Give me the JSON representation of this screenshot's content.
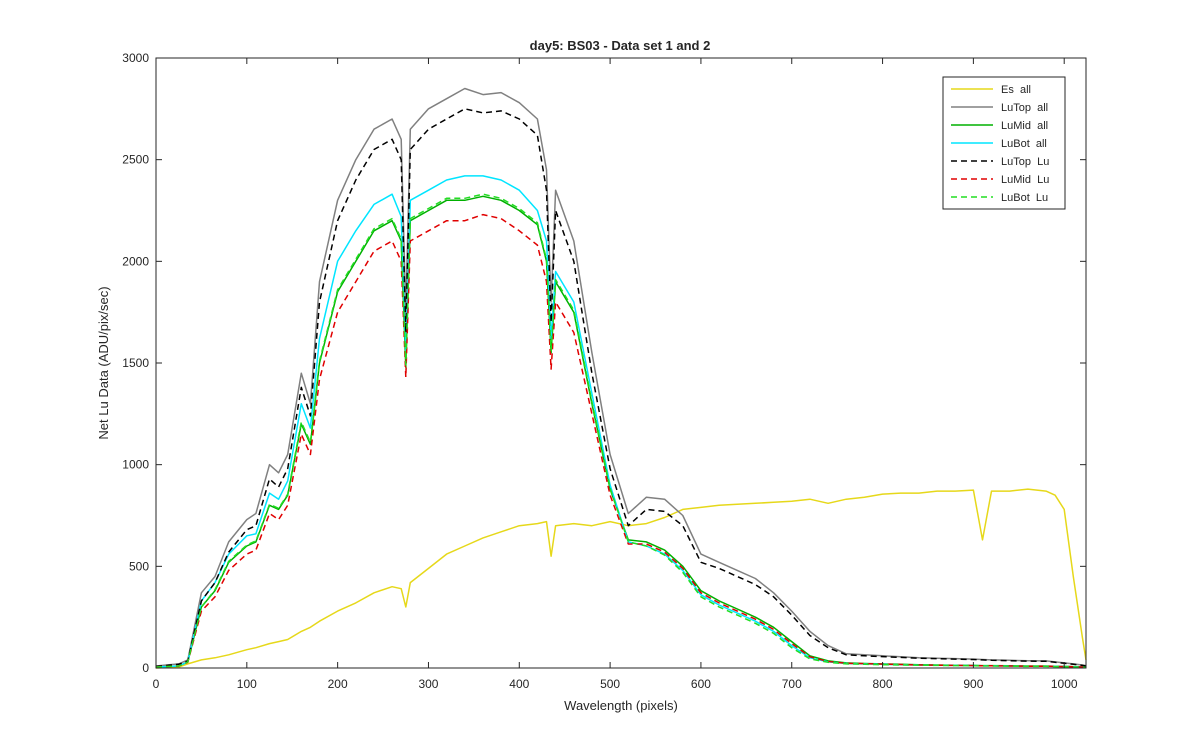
{
  "chart_data": {
    "type": "line",
    "title": "day5: BS03 - Data set 1 and 2",
    "xlabel": "Wavelength (pixels)",
    "ylabel": "Net Lu Data (ADU/pix/sec)",
    "xlim": [
      0,
      1024
    ],
    "ylim": [
      0,
      3000
    ],
    "xticks": [
      "0",
      "100",
      "200",
      "300",
      "400",
      "500",
      "600",
      "700",
      "800",
      "900",
      "1000"
    ],
    "xtick_values": [
      0,
      100,
      200,
      300,
      400,
      500,
      600,
      700,
      800,
      900,
      1000
    ],
    "yticks": [
      "0",
      "500",
      "1000",
      "1500",
      "2000",
      "2500",
      "3000"
    ],
    "ytick_values": [
      0,
      500,
      1000,
      1500,
      2000,
      2500,
      3000
    ],
    "grid": false,
    "legend_position": "top-right",
    "x": [
      0,
      25,
      35,
      50,
      65,
      80,
      100,
      110,
      125,
      135,
      145,
      160,
      170,
      180,
      200,
      220,
      240,
      260,
      270,
      275,
      280,
      300,
      320,
      340,
      360,
      380,
      400,
      420,
      430,
      435,
      440,
      460,
      480,
      500,
      520,
      540,
      560,
      580,
      600,
      620,
      640,
      660,
      680,
      700,
      720,
      740,
      760,
      780,
      800,
      820,
      840,
      860,
      880,
      900,
      910,
      920,
      940,
      960,
      980,
      990,
      1000,
      1010,
      1020,
      1024
    ],
    "series": [
      {
        "name": "Es  all",
        "color": "#e6d81a",
        "dash": "solid",
        "values": [
          0,
          5,
          20,
          40,
          50,
          65,
          90,
          100,
          120,
          130,
          140,
          180,
          200,
          230,
          280,
          320,
          370,
          400,
          390,
          300,
          420,
          490,
          560,
          600,
          640,
          670,
          700,
          710,
          720,
          550,
          700,
          710,
          700,
          720,
          700,
          710,
          740,
          780,
          790,
          800,
          805,
          810,
          815,
          820,
          830,
          810,
          830,
          840,
          855,
          860,
          860,
          870,
          870,
          875,
          630,
          870,
          870,
          880,
          870,
          850,
          780,
          450,
          150,
          40
        ]
      },
      {
        "name": "LuTop  all",
        "color": "#808080",
        "dash": "solid",
        "values": [
          10,
          20,
          40,
          370,
          450,
          620,
          730,
          760,
          1000,
          960,
          1050,
          1450,
          1300,
          1900,
          2300,
          2500,
          2650,
          2700,
          2600,
          1750,
          2650,
          2750,
          2800,
          2850,
          2820,
          2830,
          2780,
          2700,
          2450,
          1800,
          2350,
          2100,
          1550,
          1050,
          760,
          840,
          830,
          750,
          560,
          520,
          480,
          440,
          370,
          280,
          180,
          110,
          70,
          65,
          60,
          55,
          50,
          48,
          46,
          44,
          42,
          40,
          38,
          36,
          35,
          30,
          25,
          20,
          15,
          12
        ]
      },
      {
        "name": "LuMid  all",
        "color": "#00b000",
        "dash": "solid",
        "values": [
          5,
          10,
          30,
          300,
          380,
          520,
          600,
          620,
          800,
          780,
          850,
          1200,
          1100,
          1500,
          1850,
          2000,
          2150,
          2200,
          2100,
          1480,
          2200,
          2250,
          2300,
          2300,
          2320,
          2300,
          2250,
          2180,
          2000,
          1550,
          1900,
          1750,
          1300,
          880,
          630,
          620,
          580,
          500,
          380,
          330,
          290,
          250,
          200,
          130,
          60,
          35,
          25,
          22,
          20,
          18,
          16,
          15,
          14,
          13,
          12,
          12,
          11,
          10,
          10,
          9,
          8,
          7,
          6,
          5
        ]
      },
      {
        "name": "LuBot  all",
        "color": "#00e5ff",
        "dash": "solid",
        "values": [
          5,
          10,
          30,
          330,
          420,
          560,
          650,
          660,
          860,
          830,
          920,
          1300,
          1180,
          1620,
          2000,
          2150,
          2280,
          2330,
          2220,
          1550,
          2300,
          2350,
          2400,
          2420,
          2420,
          2400,
          2350,
          2250,
          2100,
          1620,
          1950,
          1800,
          1350,
          900,
          620,
          600,
          560,
          480,
          360,
          310,
          270,
          230,
          180,
          110,
          50,
          30,
          22,
          20,
          18,
          16,
          15,
          14,
          13,
          12,
          11,
          11,
          10,
          9,
          9,
          8,
          7,
          6,
          5,
          4
        ]
      },
      {
        "name": "LuTop  Lu",
        "color": "#000000",
        "dash": "dashed",
        "values": [
          8,
          18,
          35,
          330,
          420,
          570,
          680,
          700,
          930,
          890,
          980,
          1380,
          1240,
          1800,
          2200,
          2400,
          2550,
          2600,
          2500,
          1650,
          2550,
          2650,
          2700,
          2750,
          2730,
          2740,
          2700,
          2620,
          2350,
          1700,
          2250,
          2000,
          1450,
          980,
          700,
          780,
          770,
          700,
          520,
          490,
          450,
          410,
          350,
          260,
          160,
          100,
          65,
          60,
          56,
          52,
          48,
          46,
          44,
          42,
          40,
          38,
          36,
          34,
          33,
          28,
          23,
          18,
          13,
          10
        ]
      },
      {
        "name": "LuMid  Lu",
        "color": "#e00000",
        "dash": "dashed",
        "values": [
          5,
          10,
          28,
          280,
          350,
          480,
          560,
          580,
          760,
          730,
          800,
          1150,
          1050,
          1420,
          1750,
          1900,
          2050,
          2100,
          2000,
          1430,
          2100,
          2150,
          2200,
          2200,
          2230,
          2210,
          2150,
          2080,
          1900,
          1470,
          1800,
          1650,
          1250,
          850,
          610,
          610,
          570,
          490,
          370,
          320,
          280,
          240,
          190,
          120,
          55,
          32,
          23,
          21,
          19,
          17,
          15,
          14,
          13,
          12,
          11,
          11,
          10,
          9,
          9,
          8,
          7,
          6,
          5,
          4
        ]
      },
      {
        "name": "LuBot  Lu",
        "color": "#22dd22",
        "dash": "dashed",
        "values": [
          5,
          10,
          30,
          300,
          385,
          525,
          605,
          625,
          805,
          785,
          855,
          1210,
          1110,
          1510,
          1860,
          2010,
          2160,
          2210,
          2110,
          1490,
          2210,
          2260,
          2310,
          2310,
          2330,
          2310,
          2260,
          2190,
          2010,
          1560,
          1910,
          1760,
          1310,
          885,
          620,
          600,
          555,
          470,
          350,
          300,
          260,
          220,
          170,
          100,
          45,
          28,
          20,
          18,
          16,
          15,
          14,
          13,
          12,
          11,
          10,
          10,
          9,
          8,
          8,
          7,
          6,
          5,
          4,
          3
        ]
      }
    ]
  }
}
